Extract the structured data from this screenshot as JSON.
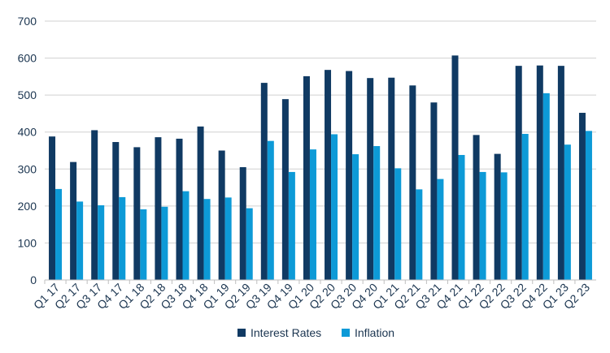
{
  "chart_data": {
    "type": "bar",
    "categories": [
      "Q1 17",
      "Q2 17",
      "Q3 17",
      "Q4 17",
      "Q1 18",
      "Q2 18",
      "Q3 18",
      "Q4 18",
      "Q1 19",
      "Q2 19",
      "Q3 19",
      "Q4 19",
      "Q1 20",
      "Q2 20",
      "Q3 20",
      "Q4 20",
      "Q1 21",
      "Q2 21",
      "Q3 21",
      "Q4 21",
      "Q1 22",
      "Q2 22",
      "Q3 22",
      "Q4 22",
      "Q1 23",
      "Q2 23"
    ],
    "series": [
      {
        "name": "Interest Rates",
        "color": "#103a63",
        "values": [
          388,
          319,
          405,
          373,
          359,
          386,
          382,
          415,
          350,
          305,
          533,
          489,
          551,
          568,
          565,
          546,
          547,
          526,
          480,
          607,
          392,
          341,
          579,
          580,
          579,
          452
        ]
      },
      {
        "name": "Inflation",
        "color": "#0d9ad7",
        "values": [
          246,
          212,
          202,
          224,
          191,
          198,
          240,
          219,
          223,
          194,
          376,
          292,
          353,
          394,
          340,
          362,
          302,
          245,
          273,
          338,
          292,
          291,
          395,
          505,
          366,
          403
        ]
      }
    ],
    "ylim": [
      0,
      700
    ],
    "yticks": [
      0,
      100,
      200,
      300,
      400,
      500,
      600,
      700
    ],
    "grid": true,
    "legend_position": "bottom"
  }
}
